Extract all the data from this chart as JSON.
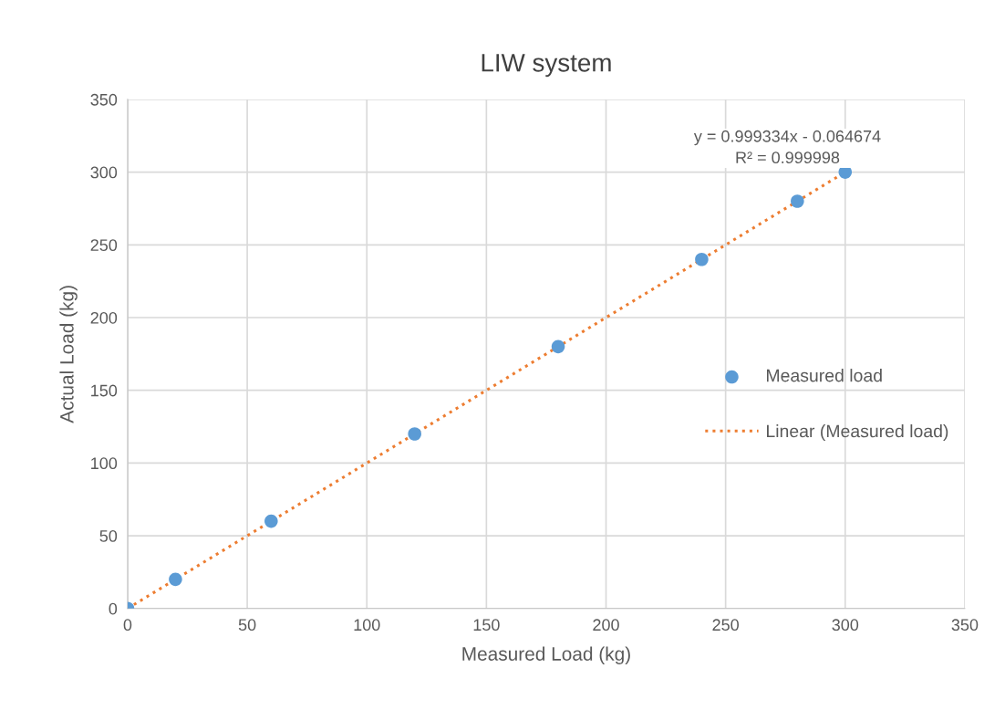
{
  "chart_data": {
    "type": "scatter",
    "title": "LIW system",
    "xlabel": "Measured Load (kg)",
    "ylabel": "Actual Load (kg)",
    "series": [
      {
        "name": "Measured load",
        "color": "#5b9bd5",
        "marker": "circle",
        "x": [
          0,
          20,
          60,
          120,
          180,
          240,
          280,
          300
        ],
        "values": [
          0,
          20,
          60,
          120,
          180,
          240,
          280,
          300
        ]
      },
      {
        "name": "Linear (Measured load)",
        "type": "line",
        "color": "#ed7d31",
        "line_style": "dotted",
        "marker": "none",
        "x": [
          0,
          300
        ],
        "values": [
          0,
          300
        ]
      }
    ],
    "annotations": [
      "y = 0.999334x - 0.064674",
      "R² = 0.999998"
    ],
    "xlim": [
      0,
      350
    ],
    "xticks": [
      0,
      50,
      100,
      150,
      200,
      250,
      300,
      350
    ],
    "ylim": [
      0,
      350
    ],
    "yticks": [
      0,
      50,
      100,
      150,
      200,
      250,
      300,
      350
    ],
    "grid": true,
    "legend": "right"
  }
}
